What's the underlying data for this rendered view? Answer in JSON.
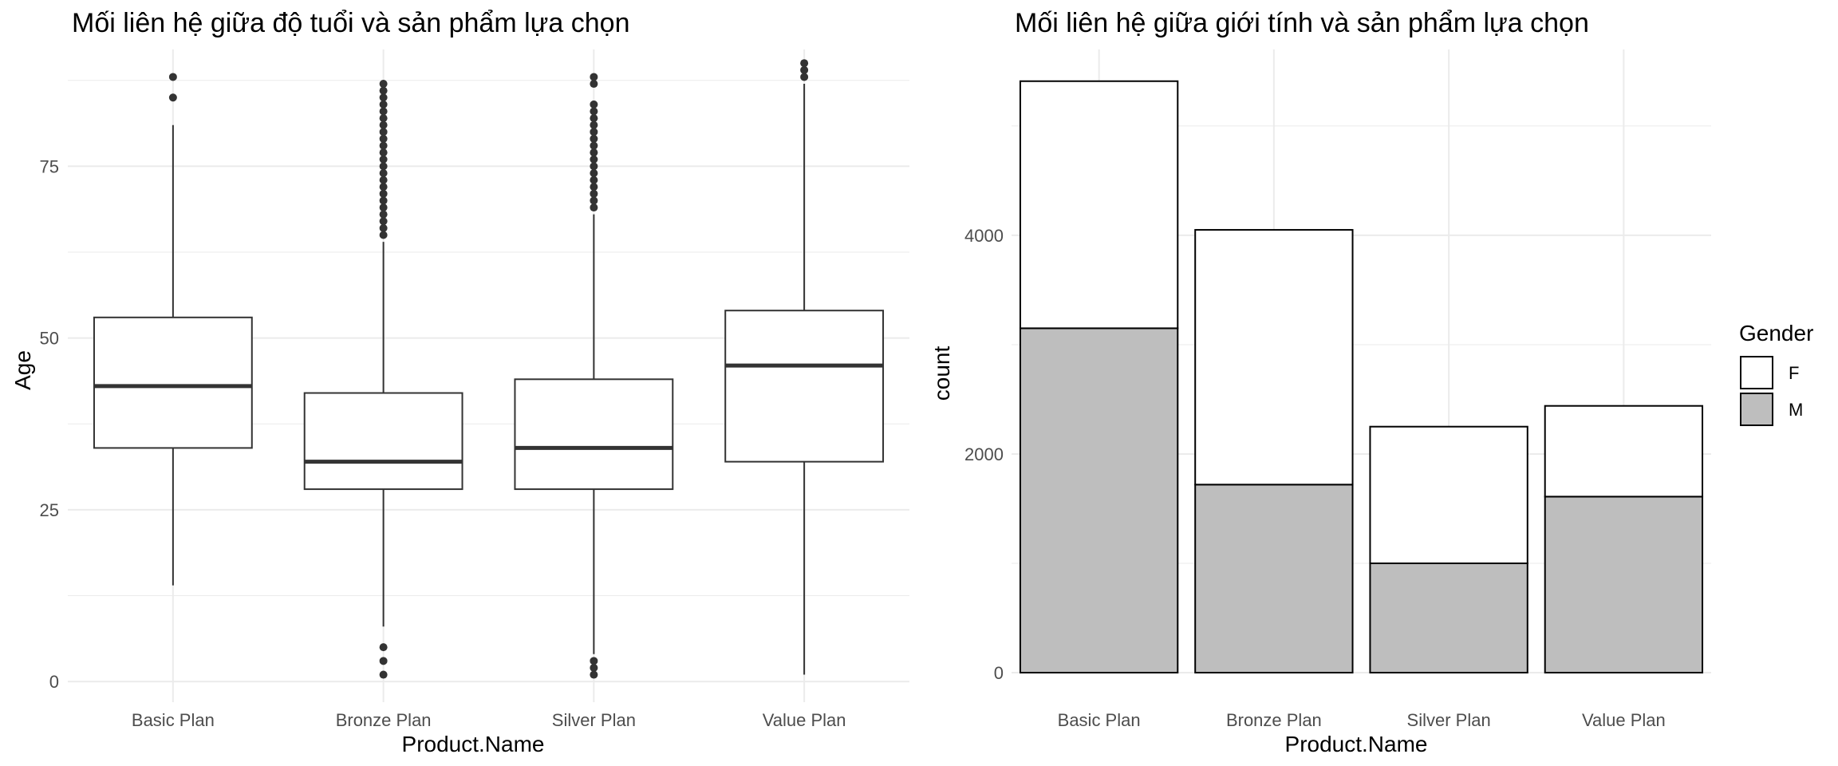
{
  "chart_data": [
    {
      "type": "boxplot",
      "title": "Mối liên hệ giữa độ tuổi và sản phẩm lựa chọn",
      "xlabel": "Product.Name",
      "ylabel": "Age",
      "categories": [
        "Basic Plan",
        "Bronze Plan",
        "Silver Plan",
        "Value Plan"
      ],
      "ylim": [
        -3,
        92
      ],
      "yticks": [
        0,
        25,
        50,
        75
      ],
      "grid": true,
      "boxes": [
        {
          "category": "Basic Plan",
          "whisker_low": 14,
          "q1": 34,
          "median": 43,
          "q3": 53,
          "whisker_high": 81,
          "outliers": [
            85,
            88
          ]
        },
        {
          "category": "Bronze Plan",
          "whisker_low": 8,
          "q1": 28,
          "median": 32,
          "q3": 42,
          "whisker_high": 64,
          "outliers": [
            1,
            3,
            5,
            65,
            66,
            67,
            68,
            69,
            70,
            71,
            72,
            73,
            74,
            75,
            76,
            77,
            78,
            79,
            80,
            81,
            82,
            83,
            84,
            85,
            86,
            87
          ]
        },
        {
          "category": "Silver Plan",
          "whisker_low": 4,
          "q1": 28,
          "median": 34,
          "q3": 44,
          "whisker_high": 68,
          "outliers": [
            1,
            2,
            3,
            69,
            70,
            71,
            72,
            73,
            74,
            75,
            76,
            77,
            78,
            79,
            80,
            81,
            82,
            83,
            84,
            87,
            88
          ]
        },
        {
          "category": "Value Plan",
          "whisker_low": 1,
          "q1": 32,
          "median": 46,
          "q3": 54,
          "whisker_high": 87,
          "outliers": [
            88,
            89,
            90
          ]
        }
      ]
    },
    {
      "type": "bar",
      "stacked": true,
      "title": "Mối liên hệ giữa giới tính và sản phẩm lựa chọn",
      "xlabel": "Product.Name",
      "ylabel": "count",
      "categories": [
        "Basic Plan",
        "Bronze Plan",
        "Silver Plan",
        "Value Plan"
      ],
      "ylim": [
        0,
        5700
      ],
      "yticks": [
        0,
        2000,
        4000
      ],
      "grid": true,
      "series": [
        {
          "name": "M",
          "color": "#bebebe",
          "values": [
            3150,
            1720,
            1000,
            1610
          ]
        },
        {
          "name": "F",
          "color": "#ffffff",
          "values": [
            2260,
            2330,
            1250,
            830
          ]
        }
      ],
      "legend": {
        "title": "Gender",
        "position": "right",
        "items": [
          "F",
          "M"
        ]
      }
    }
  ]
}
